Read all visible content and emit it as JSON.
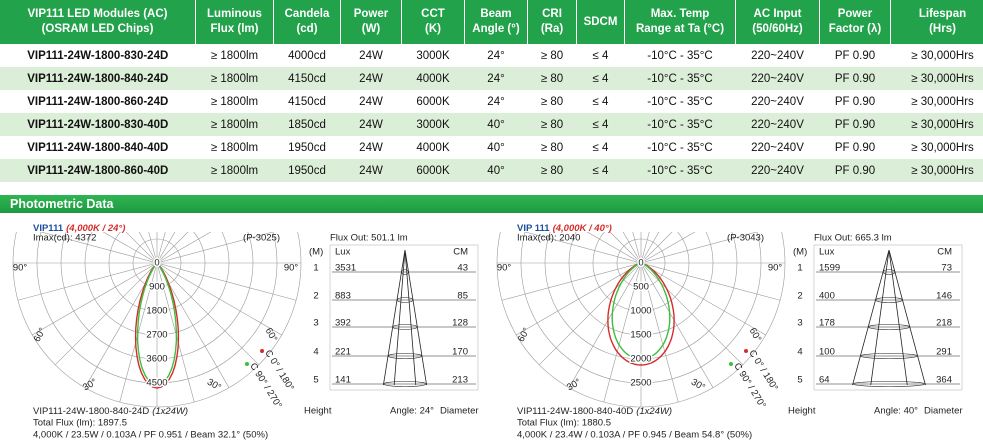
{
  "table": {
    "header": [
      "VIP111 LED Modules (AC)\n(OSRAM LED Chips)",
      "Luminous\nFlux (lm)",
      "Candela\n(cd)",
      "Power\n(W)",
      "CCT\n(K)",
      "Beam\nAngle (°)",
      "CRI\n(Ra)",
      "SDCM",
      "Max. Temp\nRange at Ta (°C)",
      "AC Input\n(50/60Hz)",
      "Power\nFactor (λ)",
      "Lifespan\n(Hrs)"
    ],
    "rows": [
      [
        "VIP111-24W-1800-830-24D",
        "≥ 1800lm",
        "4000cd",
        "24W",
        "3000K",
        "24°",
        "≥ 80",
        "≤ 4",
        "-10°C - 35°C",
        "220~240V",
        "PF 0.90",
        "≥ 30,000Hrs"
      ],
      [
        "VIP111-24W-1800-840-24D",
        "≥ 1800lm",
        "4150cd",
        "24W",
        "4000K",
        "24°",
        "≥ 80",
        "≤ 4",
        "-10°C - 35°C",
        "220~240V",
        "PF 0.90",
        "≥ 30,000Hrs"
      ],
      [
        "VIP111-24W-1800-860-24D",
        "≥ 1800lm",
        "4150cd",
        "24W",
        "6000K",
        "24°",
        "≥ 80",
        "≤ 4",
        "-10°C - 35°C",
        "220~240V",
        "PF 0.90",
        "≥ 30,000Hrs"
      ],
      [
        "VIP111-24W-1800-830-40D",
        "≥ 1800lm",
        "1850cd",
        "24W",
        "3000K",
        "40°",
        "≥ 80",
        "≤ 4",
        "-10°C - 35°C",
        "220~240V",
        "PF 0.90",
        "≥ 30,000Hrs"
      ],
      [
        "VIP111-24W-1800-840-40D",
        "≥ 1800lm",
        "1950cd",
        "24W",
        "4000K",
        "40°",
        "≥ 80",
        "≤ 4",
        "-10°C - 35°C",
        "220~240V",
        "PF 0.90",
        "≥ 30,000Hrs"
      ],
      [
        "VIP111-24W-1800-860-40D",
        "≥ 1800lm",
        "1950cd",
        "24W",
        "6000K",
        "40°",
        "≥ 80",
        "≤ 4",
        "-10°C - 35°C",
        "220~240V",
        "PF 0.90",
        "≥ 30,000Hrs"
      ]
    ]
  },
  "section_title": "Photometric Data",
  "photometric": [
    {
      "title": "VIP111",
      "subtitle": "(4,000K / 24°)",
      "imax": "Imax(cd): 4372",
      "code": "(P-3025)",
      "scale": [
        "0",
        "900",
        "1800",
        "2700",
        "3600",
        "4500"
      ],
      "angles": [
        "90°",
        "90°",
        "60°",
        "60°",
        "30°",
        "30°"
      ],
      "legend": [
        "C 0° / 180°",
        "C 90° / 270°"
      ],
      "model": "VIP111-24W-1800-840-24D",
      "config": "(1x24W)",
      "total": "Total Flux (lm): 1897.5",
      "specs": "4,000K / 23.5W / 0.103A / PF 0.951 / Beam 32.1° (50%)",
      "flux": "Flux Out: 501.1 lm",
      "unit": "(M)",
      "lux": "Lux",
      "cm": "CM",
      "rows": [
        [
          "1",
          "3531",
          "43"
        ],
        [
          "2",
          "883",
          "85"
        ],
        [
          "3",
          "392",
          "128"
        ],
        [
          "4",
          "221",
          "170"
        ],
        [
          "5",
          "141",
          "213"
        ]
      ],
      "height": "Height",
      "angle": "Angle: 24°",
      "diameter": "Diameter"
    },
    {
      "title": "VIP 111",
      "subtitle": "(4,000K / 40°)",
      "imax": "Imax(cd): 2040",
      "code": "(P-3043)",
      "scale": [
        "0",
        "500",
        "1000",
        "1500",
        "2000",
        "2500"
      ],
      "angles": [
        "90°",
        "90°",
        "60°",
        "60°",
        "30°",
        "30°"
      ],
      "legend": [
        "C 0° / 180°",
        "C 90° / 270°"
      ],
      "model": "VIP111-24W-1800-840-40D",
      "config": "(1x24W)",
      "total": "Total Flux (lm): 1880.5",
      "specs": "4,000K / 23.4W / 0.103A / PF 0.945 / Beam 54.8° (50%)",
      "flux": "Flux Out: 665.3 lm",
      "unit": "(M)",
      "lux": "Lux",
      "cm": "CM",
      "rows": [
        [
          "1",
          "1599",
          "73"
        ],
        [
          "2",
          "400",
          "146"
        ],
        [
          "3",
          "178",
          "218"
        ],
        [
          "4",
          "100",
          "291"
        ],
        [
          "5",
          "64",
          "364"
        ]
      ],
      "height": "Height",
      "angle": "Angle: 40°",
      "diameter": "Diameter"
    }
  ]
}
